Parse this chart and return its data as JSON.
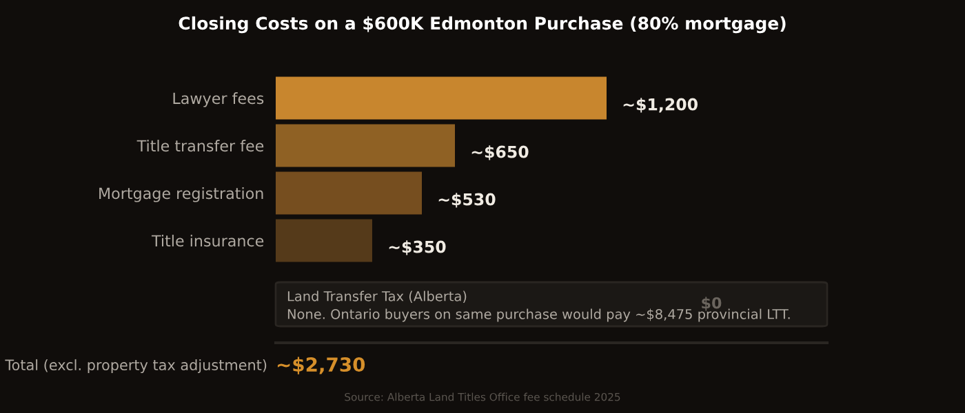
{
  "chart_data": {
    "type": "bar",
    "orientation": "horizontal",
    "title": "Closing Costs on a $600K Edmonton Purchase (80% mortgage)",
    "categories": [
      "Lawyer fees",
      "Title transfer fee",
      "Mortgage registration",
      "Title insurance"
    ],
    "values": [
      1200,
      650,
      530,
      350
    ],
    "colors": [
      "#c8862e",
      "#8f6124",
      "#764e1f",
      "#553a1a"
    ],
    "value_labels": [
      "~$1,200",
      "~$650",
      "~$530",
      "~$350"
    ],
    "grid": false,
    "legend": false,
    "annotations": [
      "Land Transfer Tax (Alberta)",
      "None. Ontario buyers on same purchase would pay ~$8,475 provincial LTT.",
      "$0",
      "Total (excl. property tax adjustment)",
      "~$2,730",
      "Source: Alberta Land Titles Office fee schedule 2025"
    ]
  }
}
